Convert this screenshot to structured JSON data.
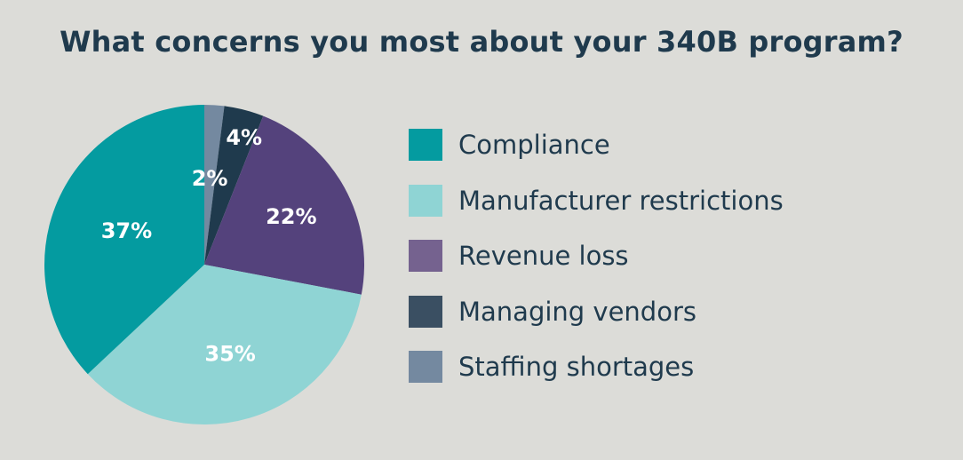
{
  "chart_data": {
    "type": "pie",
    "title": "What concerns you most about your 340B program?",
    "slices": [
      {
        "label": "Compliance",
        "value": 37,
        "display": "37%",
        "color": "#049ba0"
      },
      {
        "label": "Manufacturer restrictions",
        "value": 35,
        "display": "35%",
        "color": "#8fd4d4"
      },
      {
        "label": "Revenue loss",
        "value": 22,
        "display": "22%",
        "color": "#54427c"
      },
      {
        "label": "Managing vendors",
        "value": 4,
        "display": "4%",
        "color": "#1f3a4d"
      },
      {
        "label": "Staffing shortages",
        "value": 2,
        "display": "2%",
        "color": "#7489a0"
      }
    ],
    "legend": {
      "placement": "right",
      "items": [
        {
          "label": "Compliance",
          "color": "#049ba0"
        },
        {
          "label": "Manufacturer restrictions",
          "color": "#8fd4d4"
        },
        {
          "label": "Revenue loss",
          "color": "#75628f"
        },
        {
          "label": "Managing vendors",
          "color": "#3a4f62"
        },
        {
          "label": "Staffing shortages",
          "color": "#7489a0"
        }
      ]
    }
  }
}
